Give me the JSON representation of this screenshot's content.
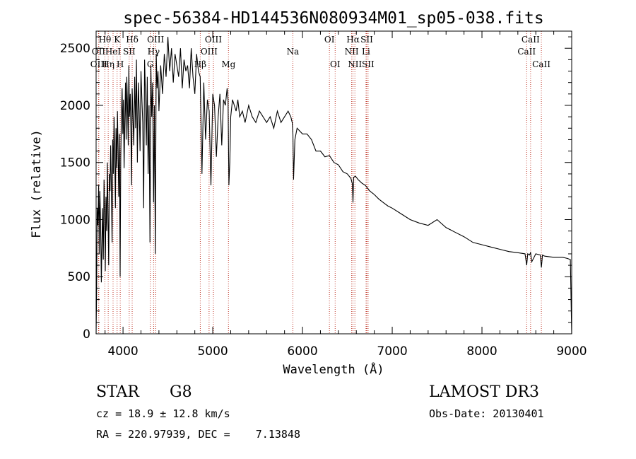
{
  "chart_data": {
    "type": "line",
    "title": "spec-56384-HD144536N080934M01_sp05-038.fits",
    "xlabel": "Wavelength (Å)",
    "ylabel": "Flux (relative)",
    "xlim": [
      3700,
      9000
    ],
    "ylim": [
      0,
      2650
    ],
    "xticks": [
      4000,
      5000,
      6000,
      7000,
      8000,
      9000
    ],
    "yticks": [
      0,
      500,
      1000,
      1500,
      2000,
      2500
    ],
    "lines": [
      {
        "label": "Hθ",
        "x": 3798,
        "row": 1
      },
      {
        "label": "OII",
        "x": 3727,
        "row": 2
      },
      {
        "label": "OIII",
        "x": 3730,
        "row": 3
      },
      {
        "label": "K",
        "x": 3934,
        "row": 1
      },
      {
        "label": "HeI",
        "x": 3889,
        "row": 2
      },
      {
        "label": "Hη",
        "x": 3835,
        "row": 3
      },
      {
        "label": "SII",
        "x": 4069,
        "row": 2
      },
      {
        "label": "H",
        "x": 3969,
        "row": 3
      },
      {
        "label": "Hδ",
        "x": 4102,
        "row": 1
      },
      {
        "label": "OIII",
        "x": 4363,
        "row": 1
      },
      {
        "label": "Hγ",
        "x": 4341,
        "row": 2
      },
      {
        "label": "G",
        "x": 4304,
        "row": 3
      },
      {
        "label": "OIII",
        "x": 5007,
        "row": 1
      },
      {
        "label": "OIII",
        "x": 4959,
        "row": 2
      },
      {
        "label": "Hβ",
        "x": 4861,
        "row": 3
      },
      {
        "label": "Mg",
        "x": 5175,
        "row": 3
      },
      {
        "label": "Na",
        "x": 5893,
        "row": 2
      },
      {
        "label": "OI",
        "x": 6300,
        "row": 1
      },
      {
        "label": "OI",
        "x": 6364,
        "row": 3
      },
      {
        "label": "Hα",
        "x": 6563,
        "row": 1
      },
      {
        "label": "NII",
        "x": 6548,
        "row": 2
      },
      {
        "label": "NII",
        "x": 6584,
        "row": 3
      },
      {
        "label": "SII",
        "x": 6716,
        "row": 1
      },
      {
        "label": "Li",
        "x": 6708,
        "row": 2
      },
      {
        "label": "SII",
        "x": 6731,
        "row": 3
      },
      {
        "label": "CaII",
        "x": 8542,
        "row": 1
      },
      {
        "label": "CaII",
        "x": 8498,
        "row": 2
      },
      {
        "label": "CaII",
        "x": 8662,
        "row": 3
      }
    ],
    "series": [
      {
        "name": "flux",
        "x": [
          3700,
          3705,
          3712,
          3720,
          3728,
          3735,
          3742,
          3750,
          3758,
          3765,
          3772,
          3780,
          3788,
          3795,
          3802,
          3810,
          3818,
          3825,
          3832,
          3840,
          3848,
          3855,
          3862,
          3870,
          3878,
          3885,
          3892,
          3900,
          3908,
          3915,
          3922,
          3930,
          3938,
          3945,
          3952,
          3960,
          3968,
          3975,
          3982,
          3990,
          3998,
          4005,
          4012,
          4020,
          4028,
          4035,
          4042,
          4050,
          4058,
          4065,
          4072,
          4080,
          4088,
          4095,
          4102,
          4110,
          4120,
          4130,
          4140,
          4150,
          4160,
          4170,
          4180,
          4190,
          4200,
          4210,
          4220,
          4230,
          4240,
          4250,
          4260,
          4270,
          4280,
          4290,
          4300,
          4310,
          4320,
          4330,
          4340,
          4350,
          4360,
          4370,
          4380,
          4390,
          4400,
          4420,
          4440,
          4460,
          4480,
          4500,
          4520,
          4540,
          4560,
          4580,
          4600,
          4620,
          4640,
          4660,
          4680,
          4700,
          4720,
          4740,
          4760,
          4780,
          4800,
          4820,
          4840,
          4860,
          4880,
          4900,
          4920,
          4940,
          4960,
          4980,
          5000,
          5020,
          5040,
          5060,
          5080,
          5100,
          5120,
          5140,
          5160,
          5170,
          5180,
          5190,
          5200,
          5220,
          5240,
          5260,
          5280,
          5300,
          5330,
          5360,
          5400,
          5440,
          5480,
          5520,
          5560,
          5600,
          5640,
          5680,
          5720,
          5760,
          5800,
          5840,
          5870,
          5885,
          5893,
          5900,
          5915,
          5940,
          6000,
          6050,
          6100,
          6150,
          6200,
          6250,
          6300,
          6350,
          6400,
          6450,
          6500,
          6540,
          6556,
          6563,
          6570,
          6590,
          6620,
          6660,
          6700,
          6750,
          6800,
          6850,
          6900,
          6950,
          7000,
          7100,
          7200,
          7300,
          7400,
          7500,
          7600,
          7650,
          7700,
          7800,
          7900,
          8000,
          8100,
          8200,
          8300,
          8400,
          8480,
          8498,
          8510,
          8530,
          8542,
          8555,
          8600,
          8650,
          8662,
          8675,
          8700,
          8800,
          8900,
          8950,
          8985,
          8995,
          9000
        ],
        "values": [
          0,
          300,
          1100,
          950,
          1300,
          700,
          1250,
          1000,
          450,
          800,
          1100,
          650,
          1350,
          1050,
          550,
          1200,
          900,
          1500,
          1100,
          600,
          1400,
          1250,
          1650,
          1300,
          800,
          1700,
          1400,
          1900,
          1550,
          1100,
          1800,
          1450,
          1950,
          1600,
          1200,
          1750,
          500,
          1550,
          1900,
          2150,
          1750,
          2050,
          1450,
          1850,
          2200,
          1700,
          2250,
          2000,
          1650,
          2350,
          1900,
          2100,
          1750,
          1300,
          2150,
          1900,
          1650,
          2250,
          1800,
          2400,
          1500,
          2200,
          1950,
          1600,
          2300,
          2050,
          1850,
          1100,
          2400,
          2100,
          1650,
          2250,
          1400,
          2000,
          800,
          2350,
          1900,
          2200,
          1150,
          2000,
          700,
          2450,
          2150,
          2300,
          1950,
          2350,
          2100,
          2450,
          2250,
          2600,
          2300,
          2500,
          2200,
          2450,
          2350,
          2250,
          2500,
          2150,
          2400,
          2300,
          2350,
          2150,
          2500,
          2250,
          2100,
          2450,
          2300,
          2250,
          1400,
          2200,
          1700,
          2050,
          1950,
          1300,
          2100,
          2000,
          1550,
          1900,
          2100,
          1650,
          2050,
          2000,
          2150,
          2050,
          1300,
          1500,
          1900,
          2050,
          2000,
          1950,
          2050,
          1900,
          1950,
          1850,
          2000,
          1900,
          1850,
          1950,
          1900,
          1850,
          1900,
          1800,
          1950,
          1850,
          1900,
          1950,
          1900,
          1850,
          1750,
          1350,
          1700,
          1800,
          1750,
          1750,
          1700,
          1600,
          1600,
          1550,
          1560,
          1500,
          1480,
          1420,
          1400,
          1360,
          1310,
          1150,
          1370,
          1380,
          1350,
          1320,
          1300,
          1250,
          1220,
          1180,
          1150,
          1120,
          1100,
          1050,
          1000,
          970,
          950,
          1000,
          930,
          910,
          890,
          850,
          800,
          780,
          760,
          740,
          720,
          710,
          700,
          600,
          700,
          690,
          710,
          630,
          700,
          690,
          580,
          690,
          680,
          670,
          670,
          660,
          650,
          200,
          0
        ]
      }
    ]
  },
  "info": {
    "object_class": "STAR",
    "subclass": "G8",
    "survey": "LAMOST DR3",
    "cz_text": "cz = 18.9 ± 12.8 km/s",
    "obs_date_text": "Obs-Date: 20130401",
    "radec_text": "RA = 220.97939, DEC =    7.13848"
  }
}
